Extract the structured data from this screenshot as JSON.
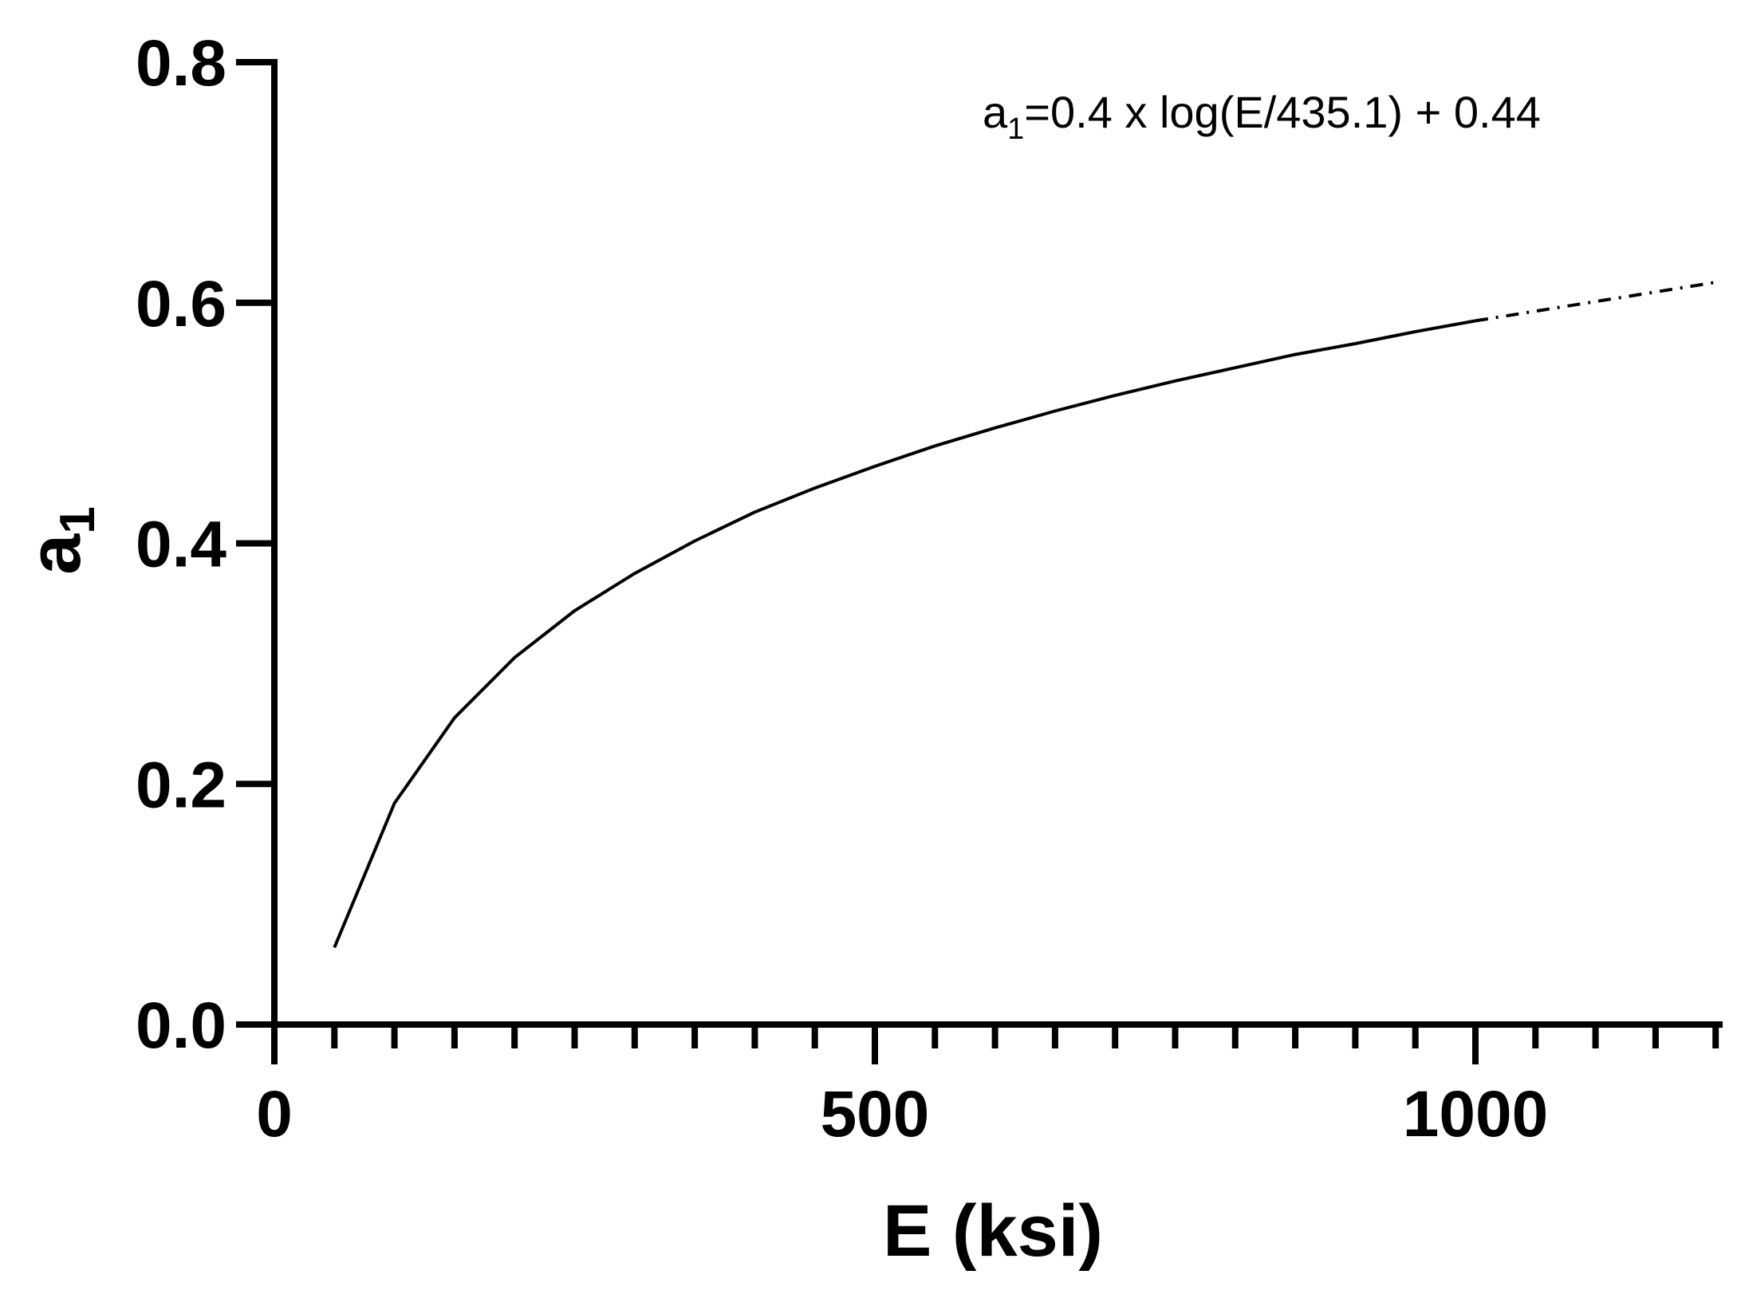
{
  "chart_data": {
    "type": "line",
    "xlabel": "E (ksi)",
    "ylabel": {
      "main": "a",
      "sub": "1"
    },
    "annotation": {
      "prefix": "a",
      "sub": "1",
      "rest": "=0.4 x log(E/435.1) + 0.44"
    },
    "xlim": [
      0,
      1210
    ],
    "ylim": [
      0,
      0.8
    ],
    "x_major_ticks": [
      0,
      500,
      1000
    ],
    "x_tick_labels": [
      "0",
      "500",
      "1000"
    ],
    "x_minor_step": 50,
    "y_ticks": [
      0.0,
      0.2,
      0.4,
      0.6,
      0.8
    ],
    "y_tick_labels": [
      "0.0",
      "0.2",
      "0.4",
      "0.6",
      "0.8"
    ],
    "grid": false,
    "series": [
      {
        "style": "solid",
        "x": [
          50,
          100,
          150,
          200,
          250,
          300,
          350,
          400,
          450,
          500,
          550,
          600,
          650,
          700,
          750,
          800,
          850,
          900,
          950,
          1000
        ],
        "y": [
          0.064,
          0.184,
          0.255,
          0.305,
          0.344,
          0.375,
          0.402,
          0.426,
          0.446,
          0.464,
          0.481,
          0.496,
          0.51,
          0.523,
          0.535,
          0.546,
          0.557,
          0.566,
          0.576,
          0.585
        ]
      },
      {
        "style": "dash-dot",
        "x": [
          1000,
          1050,
          1100,
          1150,
          1200
        ],
        "y": [
          0.585,
          0.593,
          0.601,
          0.609,
          0.617
        ]
      }
    ]
  }
}
